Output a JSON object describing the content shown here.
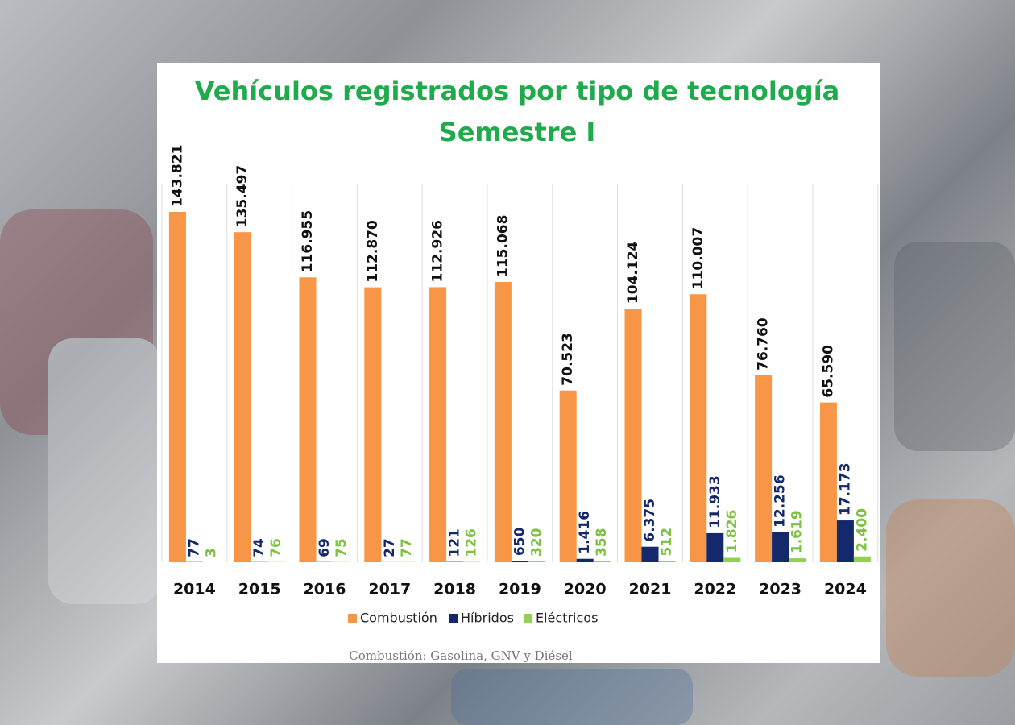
{
  "chart_data": {
    "type": "bar",
    "title": "Vehículos registrados por tipo de tecnología",
    "subtitle": "Semestre I",
    "categories": [
      "2014",
      "2015",
      "2016",
      "2017",
      "2018",
      "2019",
      "2020",
      "2021",
      "2022",
      "2023",
      "2024"
    ],
    "series": [
      {
        "name": "Combustión",
        "color": "#f79646",
        "values": [
          143821,
          135497,
          116955,
          112870,
          112926,
          115068,
          70523,
          104124,
          110007,
          76760,
          65590
        ],
        "value_labels": [
          "143.821",
          "135.497",
          "116.955",
          "112.870",
          "112.926",
          "115.068",
          "70.523",
          "104.124",
          "110.007",
          "76.760",
          "65.590"
        ]
      },
      {
        "name": "Híbridos",
        "color": "#13296b",
        "values": [
          77,
          74,
          69,
          27,
          121,
          650,
          1416,
          6375,
          11933,
          12256,
          17173
        ],
        "value_labels": [
          "77",
          "74",
          "69",
          "27",
          "121",
          "650",
          "1.416",
          "6.375",
          "11.933",
          "12.256",
          "17.173"
        ]
      },
      {
        "name": "Eléctricos",
        "color": "#92d050",
        "values": [
          3,
          76,
          75,
          77,
          126,
          320,
          358,
          512,
          1826,
          1619,
          2400
        ],
        "value_labels": [
          "3",
          "76",
          "75",
          "77",
          "126",
          "320",
          "358",
          "512",
          "1.826",
          "1.619",
          "2.400"
        ]
      }
    ],
    "label_colors": [
      "#111111",
      "#13296b",
      "#7cc240"
    ],
    "note": "Combustión: Gasolina, GNV y Diésel",
    "grid": true,
    "legend": "bottom"
  }
}
